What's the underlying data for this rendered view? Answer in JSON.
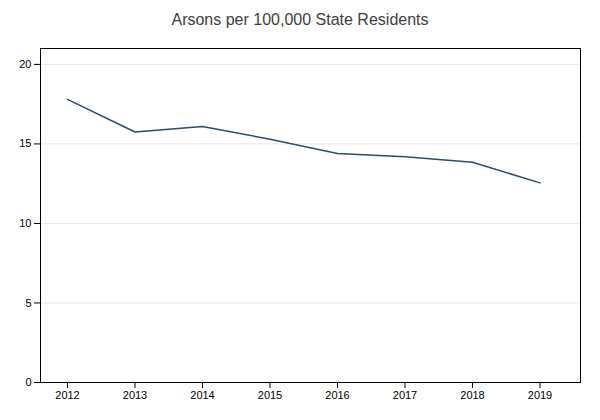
{
  "chart_data": {
    "type": "line",
    "title": "Arsons per 100,000 State Residents",
    "x": [
      2012,
      2013,
      2014,
      2015,
      2016,
      2017,
      2018,
      2019
    ],
    "values": [
      17.8,
      15.75,
      16.1,
      15.3,
      14.4,
      14.2,
      13.85,
      12.55
    ],
    "color": "#2E4A6B",
    "xlim": [
      2011.6,
      2019.6
    ],
    "xticks": [
      2012,
      2013,
      2014,
      2015,
      2016,
      2017,
      2018,
      2019
    ],
    "ylim": [
      0,
      21
    ],
    "yticks": [
      0,
      5,
      10,
      15,
      20
    ],
    "grid": true
  }
}
